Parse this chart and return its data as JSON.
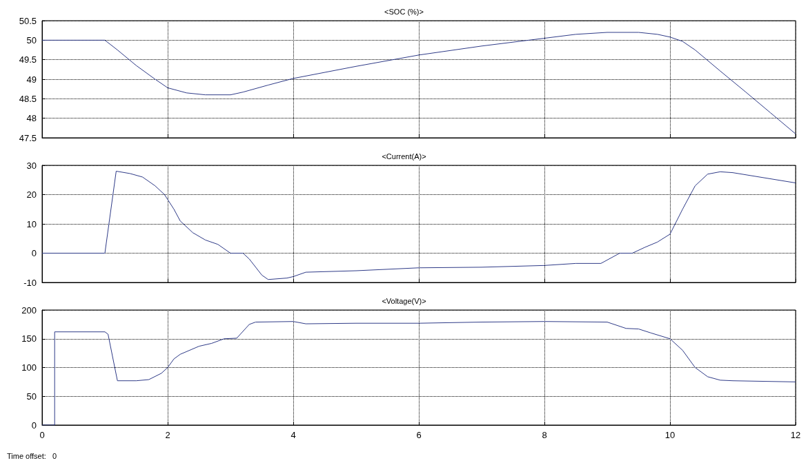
{
  "chart_data": [
    {
      "type": "line",
      "title": "<SOC (%)>",
      "tick_labels": "y",
      "grid": true,
      "marker": "none",
      "line_style": "solid",
      "xlim": [
        0,
        12
      ],
      "xticks": [
        0,
        2,
        4,
        6,
        8,
        10,
        12
      ],
      "ylim": [
        47.5,
        50.5
      ],
      "yticks": [
        47.5,
        48,
        48.5,
        49,
        49.5,
        50,
        50.5
      ],
      "series": [
        {
          "color": "#2e3a87",
          "x": [
            0,
            1,
            1.2,
            1.5,
            1.8,
            2,
            2.3,
            2.6,
            3,
            3.2,
            3.6,
            4,
            5,
            6,
            7,
            8,
            8.5,
            9,
            9.5,
            9.8,
            10,
            10.2,
            10.4,
            10.8,
            11.2,
            11.6,
            12
          ],
          "values": [
            50,
            50,
            49.75,
            49.35,
            49,
            48.78,
            48.65,
            48.6,
            48.6,
            48.67,
            48.85,
            49.02,
            49.33,
            49.62,
            49.85,
            50.05,
            50.15,
            50.2,
            50.2,
            50.15,
            50.08,
            49.97,
            49.75,
            49.21,
            48.68,
            48.14,
            47.6
          ]
        }
      ]
    },
    {
      "type": "line",
      "title": "<Current(A)>",
      "tick_labels": "y",
      "grid": true,
      "marker": "none",
      "line_style": "solid",
      "xlim": [
        0,
        12
      ],
      "xticks": [
        0,
        2,
        4,
        6,
        8,
        10,
        12
      ],
      "ylim": [
        -10,
        30
      ],
      "yticks": [
        -10,
        0,
        10,
        20,
        30
      ],
      "series": [
        {
          "color": "#2e3a87",
          "x": [
            0,
            1,
            1.18,
            1.4,
            1.6,
            1.8,
            1.95,
            2.1,
            2.2,
            2.4,
            2.6,
            2.8,
            3,
            3.2,
            3.3,
            3.5,
            3.6,
            3.9,
            4,
            4.2,
            5,
            6,
            7,
            8,
            8.5,
            8.9,
            9.2,
            9.4,
            9.6,
            9.8,
            10,
            10.2,
            10.4,
            10.6,
            10.8,
            11,
            12
          ],
          "values": [
            0,
            0,
            28,
            27.2,
            26,
            23,
            20,
            15,
            11,
            7,
            4.5,
            3,
            0,
            0,
            -2,
            -7.5,
            -9,
            -8.5,
            -8,
            -6.5,
            -6,
            -5,
            -4.8,
            -4.2,
            -3.5,
            -3.5,
            0,
            0,
            2,
            3.8,
            6.5,
            15,
            23,
            27,
            27.8,
            27.5,
            24
          ]
        }
      ]
    },
    {
      "type": "line",
      "title": "<Voltage(V)>",
      "grid": true,
      "marker": "none",
      "line_style": "solid",
      "xlim": [
        0,
        12
      ],
      "xticks": [
        0,
        2,
        4,
        6,
        8,
        10,
        12
      ],
      "ylim": [
        0,
        200
      ],
      "yticks": [
        0,
        50,
        100,
        150,
        200
      ],
      "annotations": [
        "Time offset:   0"
      ],
      "series": [
        {
          "color": "#2e3a87",
          "x": [
            0,
            0.2,
            0.2,
            1,
            1.05,
            1.2,
            1.5,
            1.7,
            1.9,
            2,
            2.1,
            2.2,
            2.5,
            2.7,
            2.9,
            3.1,
            3.3,
            3.4,
            4,
            4.2,
            5,
            6,
            7,
            8,
            9,
            9.3,
            9.5,
            9.7,
            10,
            10.2,
            10.4,
            10.6,
            10.8,
            11,
            12
          ],
          "values": [
            0,
            0,
            162,
            162,
            158,
            77,
            77,
            79,
            90,
            100,
            115,
            123,
            137,
            142,
            150,
            151,
            175,
            179,
            180,
            176,
            177,
            177,
            179,
            180,
            179,
            168,
            167,
            160,
            150,
            130,
            100,
            84,
            78,
            77,
            75
          ]
        }
      ]
    }
  ]
}
